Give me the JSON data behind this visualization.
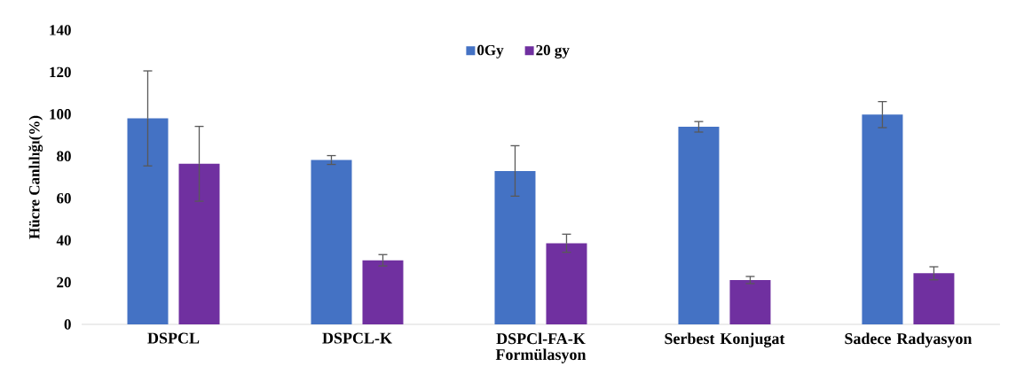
{
  "chart_data": {
    "type": "bar",
    "ylabel": "Hücre Canlılığı(%)",
    "categories": [
      "DSPCL",
      "DSPCL-K",
      "DSPCl-FA-K Formülasyon",
      "Serbest Konjugat",
      "Sadece Radyasyon"
    ],
    "series": [
      {
        "name": "0Gy",
        "color": "#4472c4",
        "values": [
          98,
          78.2,
          73,
          94,
          99.8
        ],
        "errors": [
          22.6,
          2.1,
          12,
          2.5,
          6.2
        ]
      },
      {
        "name": "20 gy",
        "color": "#7030a0",
        "values": [
          76.4,
          30.5,
          38.6,
          21.1,
          24.3
        ],
        "errors": [
          17.8,
          2.7,
          4.3,
          1.7,
          3.1
        ]
      }
    ],
    "ylim": [
      0,
      140
    ],
    "yticks": [
      0,
      20,
      40,
      60,
      80,
      100,
      120,
      140
    ],
    "legend": "top"
  }
}
